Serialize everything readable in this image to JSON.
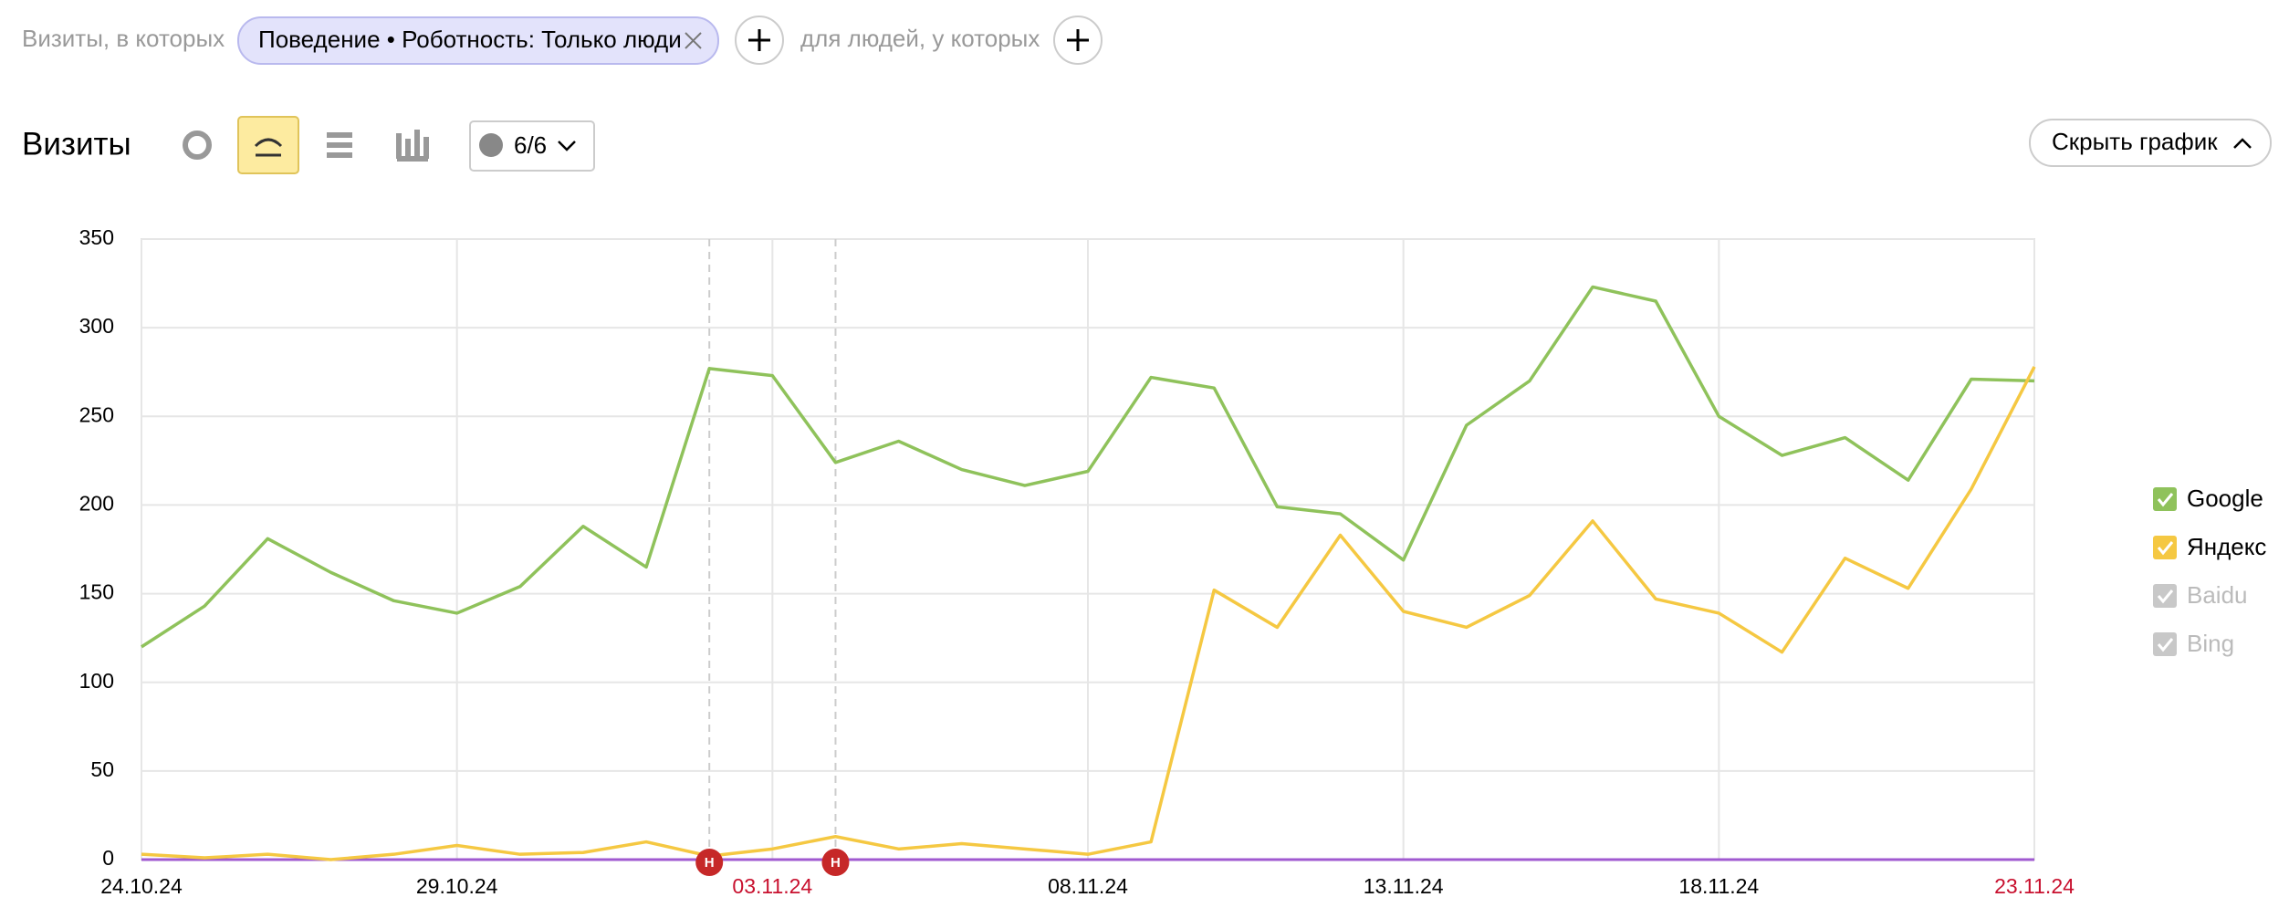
{
  "filter_bar": {
    "prefix": "Визиты, в которых",
    "chip": "Поведение • Роботность: Только люди",
    "middle": "для людей, у которых"
  },
  "toolbar": {
    "title": "Визиты",
    "annotations_count": "6/6",
    "hide_button": "Скрыть график"
  },
  "chart_data": {
    "type": "line",
    "categories": [
      "24.10.24",
      null,
      null,
      null,
      null,
      "29.10.24",
      null,
      null,
      null,
      null,
      "03.11.24",
      null,
      null,
      null,
      null,
      "08.11.24",
      null,
      null,
      null,
      null,
      "13.11.24",
      null,
      null,
      null,
      null,
      "18.11.24",
      null,
      null,
      null,
      null,
      "23.11.24"
    ],
    "holiday_indices": [
      10,
      30
    ],
    "series": [
      {
        "name": "Google",
        "color": "#8fc25b",
        "values": [
          120,
          143,
          181,
          162,
          146,
          139,
          154,
          188,
          165,
          277,
          273,
          224,
          236,
          220,
          211,
          219,
          272,
          266,
          199,
          195,
          169,
          245,
          270,
          323,
          315,
          250,
          228,
          238,
          214,
          271,
          270
        ]
      },
      {
        "name": "Яндекс",
        "color": "#f5c842",
        "values": [
          3,
          1,
          3,
          0,
          3,
          8,
          3,
          4,
          10,
          2,
          6,
          13,
          6,
          9,
          6,
          3,
          10,
          152,
          131,
          183,
          140,
          131,
          149,
          191,
          147,
          139,
          117,
          170,
          153,
          209,
          278
        ]
      }
    ],
    "inactive_series": [
      {
        "name": "Baidu"
      },
      {
        "name": "Bing"
      }
    ],
    "annotations": [
      {
        "index": 9,
        "label": "Н"
      },
      {
        "index": 11,
        "label": "Н"
      }
    ],
    "ylim": [
      0,
      350
    ],
    "yticks": [
      0,
      50,
      100,
      150,
      200,
      250,
      300,
      350
    ],
    "grid": true
  }
}
